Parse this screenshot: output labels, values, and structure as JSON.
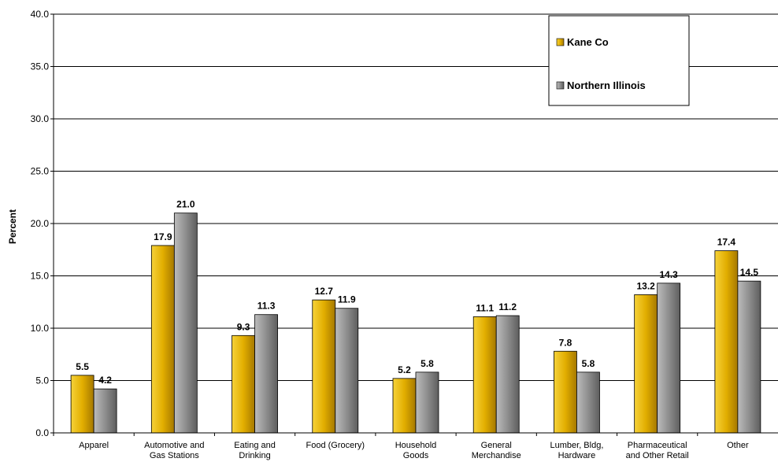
{
  "chart_data": {
    "type": "bar",
    "title": "",
    "xlabel": "",
    "ylabel": "Percent",
    "ylim": [
      0,
      40
    ],
    "yticks": [
      "0.0",
      "5.0",
      "10.0",
      "15.0",
      "20.0",
      "25.0",
      "30.0",
      "35.0",
      "40.0"
    ],
    "grid": true,
    "legend_position": "top-right",
    "categories": [
      [
        "Apparel"
      ],
      [
        "Automotive and",
        "Gas Stations"
      ],
      [
        "Eating and",
        "Drinking"
      ],
      [
        "Food (Grocery)"
      ],
      [
        "Household",
        "Goods"
      ],
      [
        "General",
        "Merchandise"
      ],
      [
        "Lumber, Bldg,",
        "Hardware"
      ],
      [
        "Pharmaceutical",
        "and Other Retail"
      ],
      [
        "Other"
      ]
    ],
    "series": [
      {
        "name": "Kane Co",
        "color": "#e8b800",
        "values": [
          5.5,
          17.9,
          9.3,
          12.7,
          5.2,
          11.1,
          7.8,
          13.2,
          17.4
        ]
      },
      {
        "name": "Northern Illinois",
        "color": "#8c8c8c",
        "values": [
          4.2,
          21.0,
          11.3,
          11.9,
          5.8,
          11.2,
          5.8,
          14.3,
          14.5
        ]
      }
    ]
  }
}
